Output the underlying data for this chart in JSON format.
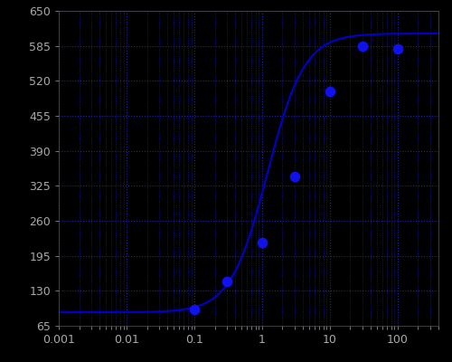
{
  "background_color": "#000000",
  "line_color": "#0000CC",
  "point_color": "#1111EE",
  "text_color": "#AAAAAA",
  "x_data": [
    0.1,
    0.3,
    1.0,
    3.0,
    10.0,
    30.0,
    100.0
  ],
  "y_data": [
    95,
    148,
    220,
    343,
    500,
    585,
    580
  ],
  "xlim": [
    0.001,
    400
  ],
  "ylim": [
    65,
    650
  ],
  "yticks": [
    65,
    130,
    195,
    260,
    325,
    390,
    455,
    520,
    585,
    650
  ],
  "xtick_labels": [
    "0.001",
    "0.01",
    "0.1",
    "1",
    "10",
    "100"
  ],
  "xtick_positions": [
    0.001,
    0.01,
    0.1,
    1,
    10,
    100
  ],
  "y_baseline": 90,
  "y_top": 608,
  "ec50": 1.2,
  "hill": 1.6,
  "figsize": [
    5.0,
    4.0
  ],
  "dpi": 100
}
